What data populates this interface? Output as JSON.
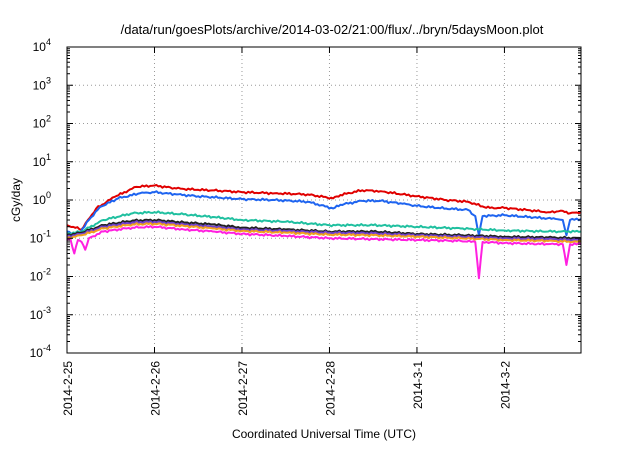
{
  "chart_data": {
    "type": "line",
    "title": "/data/run/goesPlots/archive/2014-03-02/21:00/flux/../bryn/5daysMoon.plot",
    "xlabel": "Coordinated Universal Time (UTC)",
    "ylabel": "cGy/day",
    "yscale": "log",
    "ylim": [
      0.0001,
      10000
    ],
    "xlim": [
      "2014-02-25T00:00",
      "2014-03-02T21:00"
    ],
    "y_ticks": [
      {
        "value": 0.0001,
        "base": "10",
        "exp": "-4"
      },
      {
        "value": 0.001,
        "base": "10",
        "exp": "-3"
      },
      {
        "value": 0.01,
        "base": "10",
        "exp": "-2"
      },
      {
        "value": 0.1,
        "base": "10",
        "exp": "-1"
      },
      {
        "value": 1,
        "base": "10",
        "exp": "0"
      },
      {
        "value": 10,
        "base": "10",
        "exp": "1"
      },
      {
        "value": 100,
        "base": "10",
        "exp": "2"
      },
      {
        "value": 1000,
        "base": "10",
        "exp": "3"
      },
      {
        "value": 10000,
        "base": "10",
        "exp": "4"
      }
    ],
    "x_ticks": [
      {
        "value": "2014-02-25T00:00",
        "label": "2014-2-25"
      },
      {
        "value": "2014-02-26T00:00",
        "label": "2014-2-26"
      },
      {
        "value": "2014-02-27T00:00",
        "label": "2014-2-27"
      },
      {
        "value": "2014-02-28T00:00",
        "label": "2014-2-28"
      },
      {
        "value": "2014-03-01T00:00",
        "label": "2014-3-1"
      },
      {
        "value": "2014-03-02T00:00",
        "label": "2014-3-2"
      }
    ],
    "grid": true,
    "series": [
      {
        "color": "#e00000",
        "points": [
          [
            "2014-02-25T00:00",
            0.22
          ],
          [
            "2014-02-25T04:00",
            0.17
          ],
          [
            "2014-02-25T08:00",
            0.6
          ],
          [
            "2014-02-25T13:00",
            1.2
          ],
          [
            "2014-02-25T19:00",
            2.2
          ],
          [
            "2014-02-26T00:00",
            2.4
          ],
          [
            "2014-02-26T06:00",
            2.0
          ],
          [
            "2014-02-26T12:00",
            1.85
          ],
          [
            "2014-02-26T18:00",
            1.75
          ],
          [
            "2014-02-27T00:00",
            1.6
          ],
          [
            "2014-02-27T09:00",
            1.5
          ],
          [
            "2014-02-27T18:00",
            1.4
          ],
          [
            "2014-02-28T01:00",
            1.1
          ],
          [
            "2014-02-28T03:00",
            1.35
          ],
          [
            "2014-02-28T09:00",
            1.8
          ],
          [
            "2014-02-28T14:00",
            1.7
          ],
          [
            "2014-02-28T20:00",
            1.4
          ],
          [
            "2014-03-01T00:00",
            1.25
          ],
          [
            "2014-03-01T08:00",
            1.0
          ],
          [
            "2014-03-01T14:00",
            0.9
          ],
          [
            "2014-03-01T18:00",
            0.68
          ],
          [
            "2014-03-01T20:00",
            0.62
          ],
          [
            "2014-03-02T00:00",
            0.62
          ],
          [
            "2014-03-02T06:00",
            0.55
          ],
          [
            "2014-03-02T12:00",
            0.48
          ],
          [
            "2014-03-02T16:00",
            0.52
          ],
          [
            "2014-03-02T18:00",
            0.45
          ],
          [
            "2014-03-02T21:00",
            0.48
          ]
        ]
      },
      {
        "color": "#1e64f0",
        "points": [
          [
            "2014-02-25T00:00",
            0.15
          ],
          [
            "2014-02-25T03:00",
            0.12
          ],
          [
            "2014-02-25T06:00",
            0.3
          ],
          [
            "2014-02-25T09:00",
            0.65
          ],
          [
            "2014-02-25T14:00",
            1.1
          ],
          [
            "2014-02-25T20:00",
            1.5
          ],
          [
            "2014-02-26T00:00",
            1.6
          ],
          [
            "2014-02-26T06:00",
            1.4
          ],
          [
            "2014-02-26T12:00",
            1.25
          ],
          [
            "2014-02-26T18:00",
            1.15
          ],
          [
            "2014-02-27T00:00",
            1.05
          ],
          [
            "2014-02-27T09:00",
            1.0
          ],
          [
            "2014-02-27T18:00",
            0.9
          ],
          [
            "2014-02-28T01:00",
            0.6
          ],
          [
            "2014-02-28T03:00",
            0.75
          ],
          [
            "2014-02-28T09:00",
            0.95
          ],
          [
            "2014-02-28T14:00",
            0.95
          ],
          [
            "2014-02-28T20:00",
            0.8
          ],
          [
            "2014-03-01T00:00",
            0.7
          ],
          [
            "2014-03-01T08:00",
            0.6
          ],
          [
            "2014-03-01T14:00",
            0.55
          ],
          [
            "2014-03-01T16:00",
            0.38
          ],
          [
            "2014-03-01T17:00",
            0.12
          ],
          [
            "2014-03-01T18:00",
            0.38
          ],
          [
            "2014-03-02T00:00",
            0.4
          ],
          [
            "2014-03-02T08:00",
            0.35
          ],
          [
            "2014-03-02T14:00",
            0.32
          ],
          [
            "2014-03-02T16:00",
            0.3
          ],
          [
            "2014-03-02T17:00",
            0.12
          ],
          [
            "2014-03-02T18:00",
            0.3
          ],
          [
            "2014-03-02T21:00",
            0.32
          ]
        ]
      },
      {
        "color": "#20c0a0",
        "points": [
          [
            "2014-02-25T00:00",
            0.13
          ],
          [
            "2014-02-25T04:00",
            0.15
          ],
          [
            "2014-02-25T10:00",
            0.3
          ],
          [
            "2014-02-25T18:00",
            0.45
          ],
          [
            "2014-02-26T00:00",
            0.48
          ],
          [
            "2014-02-26T08:00",
            0.42
          ],
          [
            "2014-02-26T16:00",
            0.36
          ],
          [
            "2014-02-27T00:00",
            0.3
          ],
          [
            "2014-02-27T12:00",
            0.27
          ],
          [
            "2014-02-28T00:00",
            0.22
          ],
          [
            "2014-02-28T12:00",
            0.22
          ],
          [
            "2014-03-01T00:00",
            0.2
          ],
          [
            "2014-03-01T12:00",
            0.18
          ],
          [
            "2014-03-02T00:00",
            0.16
          ],
          [
            "2014-03-02T12:00",
            0.15
          ],
          [
            "2014-03-02T21:00",
            0.15
          ]
        ]
      },
      {
        "color": "#202020",
        "points": [
          [
            "2014-02-25T00:00",
            0.12
          ],
          [
            "2014-02-25T04:00",
            0.14
          ],
          [
            "2014-02-25T10:00",
            0.22
          ],
          [
            "2014-02-25T18:00",
            0.29
          ],
          [
            "2014-02-26T00:00",
            0.3
          ],
          [
            "2014-02-26T08:00",
            0.26
          ],
          [
            "2014-02-26T16:00",
            0.23
          ],
          [
            "2014-02-27T00:00",
            0.19
          ],
          [
            "2014-02-27T12:00",
            0.17
          ],
          [
            "2014-02-28T00:00",
            0.15
          ],
          [
            "2014-02-28T12:00",
            0.15
          ],
          [
            "2014-03-01T00:00",
            0.13
          ],
          [
            "2014-03-01T12:00",
            0.12
          ],
          [
            "2014-03-02T00:00",
            0.11
          ],
          [
            "2014-03-02T12:00",
            0.105
          ],
          [
            "2014-03-02T21:00",
            0.1
          ]
        ]
      },
      {
        "color": "#7040d0",
        "points": [
          [
            "2014-02-25T00:00",
            0.11
          ],
          [
            "2014-02-25T04:00",
            0.13
          ],
          [
            "2014-02-25T10:00",
            0.2
          ],
          [
            "2014-02-25T18:00",
            0.26
          ],
          [
            "2014-02-26T00:00",
            0.27
          ],
          [
            "2014-02-26T08:00",
            0.23
          ],
          [
            "2014-02-26T16:00",
            0.2
          ],
          [
            "2014-02-27T00:00",
            0.17
          ],
          [
            "2014-02-27T12:00",
            0.155
          ],
          [
            "2014-02-28T00:00",
            0.14
          ],
          [
            "2014-02-28T12:00",
            0.135
          ],
          [
            "2014-03-01T00:00",
            0.12
          ],
          [
            "2014-03-01T12:00",
            0.11
          ],
          [
            "2014-03-02T00:00",
            0.1
          ],
          [
            "2014-03-02T12:00",
            0.095
          ],
          [
            "2014-03-02T21:00",
            0.09
          ]
        ]
      },
      {
        "color": "#f0a020",
        "points": [
          [
            "2014-02-25T00:00",
            0.1
          ],
          [
            "2014-02-25T04:00",
            0.12
          ],
          [
            "2014-02-25T10:00",
            0.18
          ],
          [
            "2014-02-25T18:00",
            0.23
          ],
          [
            "2014-02-26T00:00",
            0.24
          ],
          [
            "2014-02-26T08:00",
            0.21
          ],
          [
            "2014-02-26T16:00",
            0.18
          ],
          [
            "2014-02-27T00:00",
            0.155
          ],
          [
            "2014-02-27T12:00",
            0.14
          ],
          [
            "2014-02-28T00:00",
            0.125
          ],
          [
            "2014-02-28T12:00",
            0.12
          ],
          [
            "2014-03-01T00:00",
            0.11
          ],
          [
            "2014-03-01T12:00",
            0.1
          ],
          [
            "2014-03-02T00:00",
            0.09
          ],
          [
            "2014-03-02T12:00",
            0.085
          ],
          [
            "2014-03-02T21:00",
            0.08
          ]
        ]
      },
      {
        "color": "#ff20e0",
        "points": [
          [
            "2014-02-25T00:00",
            0.09
          ],
          [
            "2014-02-25T01:00",
            0.09
          ],
          [
            "2014-02-25T02:00",
            0.04
          ],
          [
            "2014-02-25T03:00",
            0.09
          ],
          [
            "2014-02-25T04:00",
            0.08
          ],
          [
            "2014-02-25T05:00",
            0.05
          ],
          [
            "2014-02-25T06:00",
            0.1
          ],
          [
            "2014-02-25T10:00",
            0.15
          ],
          [
            "2014-02-25T18:00",
            0.19
          ],
          [
            "2014-02-26T00:00",
            0.2
          ],
          [
            "2014-02-26T08:00",
            0.17
          ],
          [
            "2014-02-26T16:00",
            0.15
          ],
          [
            "2014-02-27T00:00",
            0.13
          ],
          [
            "2014-02-27T12:00",
            0.115
          ],
          [
            "2014-02-28T00:00",
            0.1
          ],
          [
            "2014-02-28T12:00",
            0.095
          ],
          [
            "2014-03-01T00:00",
            0.09
          ],
          [
            "2014-03-01T12:00",
            0.085
          ],
          [
            "2014-03-01T16:00",
            0.08
          ],
          [
            "2014-03-01T17:00",
            0.009
          ],
          [
            "2014-03-01T18:00",
            0.08
          ],
          [
            "2014-03-02T00:00",
            0.075
          ],
          [
            "2014-03-02T12:00",
            0.07
          ],
          [
            "2014-03-02T16:00",
            0.07
          ],
          [
            "2014-03-02T17:00",
            0.02
          ],
          [
            "2014-03-02T18:00",
            0.07
          ],
          [
            "2014-03-02T21:00",
            0.07
          ]
        ]
      }
    ]
  }
}
